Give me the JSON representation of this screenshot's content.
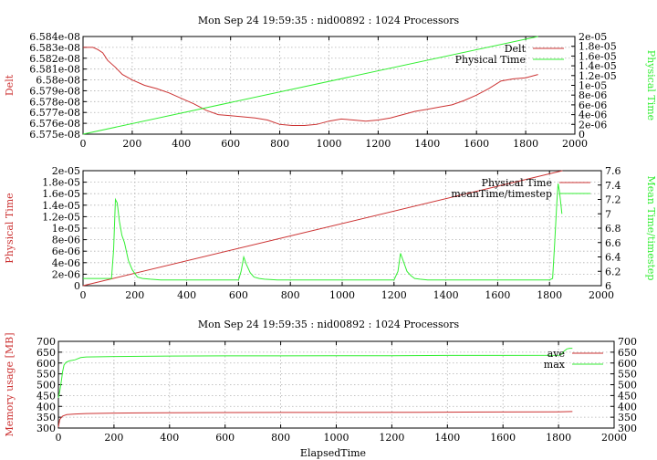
{
  "colors": {
    "red": "#cc3333",
    "green": "#33ee33"
  },
  "chart_data": [
    {
      "type": "line",
      "title": "Mon Sep 24 19:59:35 : nid00892 : 1024 Processors",
      "ylabel": "Delt",
      "y2label": "Physical Time",
      "xlim": [
        0,
        2000
      ],
      "ylim": [
        6.575e-08,
        6.584e-08
      ],
      "y2lim": [
        0,
        2e-05
      ],
      "xticks": [
        "0",
        "200",
        "400",
        "600",
        "800",
        "1000",
        "1200",
        "1400",
        "1600",
        "1800",
        "2000"
      ],
      "yticks": [
        "6.575e-08",
        "6.576e-08",
        "6.577e-08",
        "6.578e-08",
        "6.579e-08",
        "6.58e-08",
        "6.581e-08",
        "6.582e-08",
        "6.583e-08",
        "6.584e-08"
      ],
      "y2ticks": [
        "0",
        "2e-06",
        "4e-06",
        "6e-06",
        "8e-06",
        "1e-05",
        "1.2e-05",
        "1.4e-05",
        "1.6e-05",
        "1.8e-05",
        "2e-05"
      ],
      "grid": true,
      "legend": "top-right",
      "series": [
        {
          "name": "Delt",
          "axis": "y",
          "color": "red",
          "x": [
            0,
            40,
            60,
            80,
            100,
            130,
            160,
            200,
            250,
            300,
            350,
            400,
            450,
            500,
            550,
            600,
            650,
            700,
            750,
            800,
            850,
            900,
            950,
            1000,
            1050,
            1100,
            1150,
            1200,
            1250,
            1300,
            1350,
            1400,
            1450,
            1500,
            1550,
            1600,
            1650,
            1700,
            1750,
            1800,
            1850
          ],
          "y": [
            6.583e-08,
            6.583e-08,
            6.5828e-08,
            6.5825e-08,
            6.5818e-08,
            6.5812e-08,
            6.5805e-08,
            6.58e-08,
            6.5795e-08,
            6.5792e-08,
            6.5788e-08,
            6.5783e-08,
            6.5778e-08,
            6.5772e-08,
            6.5768e-08,
            6.5767e-08,
            6.5766e-08,
            6.5765e-08,
            6.5763e-08,
            6.5759e-08,
            6.5758e-08,
            6.5758e-08,
            6.5759e-08,
            6.5762e-08,
            6.5764e-08,
            6.5763e-08,
            6.5762e-08,
            6.5763e-08,
            6.5765e-08,
            6.5768e-08,
            6.5771e-08,
            6.5773e-08,
            6.5775e-08,
            6.5777e-08,
            6.5781e-08,
            6.5786e-08,
            6.5792e-08,
            6.5799e-08,
            6.5801e-08,
            6.5802e-08,
            6.5805e-08
          ]
        },
        {
          "name": "Physical Time",
          "axis": "y2",
          "color": "green",
          "x": [
            0,
            1850
          ],
          "y": [
            0,
            2e-05
          ]
        }
      ]
    },
    {
      "type": "line",
      "title": "",
      "ylabel": "Physical Time",
      "y2label": "Mean Time/timestep",
      "xlim": [
        0,
        2000
      ],
      "ylim": [
        0,
        2e-05
      ],
      "y2lim": [
        6,
        7.6
      ],
      "xticks": [
        "0",
        "200",
        "400",
        "600",
        "800",
        "1000",
        "1200",
        "1400",
        "1600",
        "1800",
        "2000"
      ],
      "yticks": [
        "0",
        "2e-06",
        "4e-06",
        "6e-06",
        "8e-06",
        "1e-05",
        "1.2e-05",
        "1.4e-05",
        "1.6e-05",
        "1.8e-05",
        "2e-05"
      ],
      "y2ticks": [
        "6",
        "6.2",
        "6.4",
        "6.6",
        "6.8",
        "7",
        "7.2",
        "7.4",
        "7.6"
      ],
      "grid": true,
      "legend": "top-right",
      "series": [
        {
          "name": "Physical Time",
          "axis": "y",
          "color": "red",
          "x": [
            0,
            1850
          ],
          "y": [
            0,
            2e-05
          ]
        },
        {
          "name": "meanTime/timestep",
          "axis": "y2",
          "color": "green",
          "x": [
            0,
            110,
            118,
            125,
            132,
            140,
            150,
            160,
            175,
            190,
            210,
            230,
            260,
            300,
            400,
            500,
            600,
            610,
            620,
            630,
            645,
            660,
            680,
            700,
            750,
            800,
            900,
            1000,
            1100,
            1200,
            1215,
            1225,
            1232,
            1240,
            1250,
            1265,
            1280,
            1300,
            1330,
            1400,
            1500,
            1600,
            1700,
            1800,
            1812,
            1820,
            1828,
            1833,
            1838,
            1842,
            1848
          ],
          "y": [
            6.1,
            6.1,
            6.5,
            7.2,
            7.15,
            6.9,
            6.7,
            6.6,
            6.35,
            6.22,
            6.12,
            6.1,
            6.09,
            6.08,
            6.08,
            6.08,
            6.08,
            6.2,
            6.4,
            6.3,
            6.18,
            6.12,
            6.1,
            6.09,
            6.08,
            6.08,
            6.08,
            6.08,
            6.08,
            6.08,
            6.2,
            6.45,
            6.38,
            6.3,
            6.2,
            6.14,
            6.1,
            6.09,
            6.08,
            6.08,
            6.08,
            6.08,
            6.08,
            6.08,
            6.1,
            6.6,
            7.15,
            7.42,
            7.32,
            7.2,
            7.0
          ]
        }
      ]
    },
    {
      "type": "line",
      "title": "Mon Sep 24 19:59:35 : nid00892 : 1024 Processors",
      "xlabel": "ElapsedTime",
      "ylabel": "Memory usage [MB]",
      "xlim": [
        0,
        2000
      ],
      "ylim": [
        300,
        700
      ],
      "y2lim": [
        300,
        700
      ],
      "xticks": [
        "0",
        "200",
        "400",
        "600",
        "800",
        "1000",
        "1200",
        "1400",
        "1600",
        "1800",
        "2000"
      ],
      "yticks": [
        "300",
        "350",
        "400",
        "450",
        "500",
        "550",
        "600",
        "650",
        "700"
      ],
      "y2ticks": [
        "300",
        "350",
        "400",
        "450",
        "500",
        "550",
        "600",
        "650",
        "700"
      ],
      "grid": true,
      "legend": "top-right",
      "series": [
        {
          "name": "ave",
          "axis": "y",
          "color": "red",
          "x": [
            0,
            5,
            15,
            30,
            60,
            100,
            200,
            300,
            500,
            800,
            1000,
            1300,
            1600,
            1800,
            1850
          ],
          "y": [
            305,
            340,
            355,
            362,
            365,
            367,
            369,
            370,
            371,
            372,
            372,
            373,
            374,
            375,
            376
          ]
        },
        {
          "name": "max",
          "axis": "y",
          "color": "green",
          "x": [
            0,
            5,
            10,
            15,
            20,
            25,
            30,
            40,
            60,
            80,
            100,
            200,
            400,
            600,
            800,
            1000,
            1200,
            1400,
            1600,
            1800,
            1810,
            1820,
            1830,
            1840,
            1850
          ],
          "y": [
            440,
            470,
            510,
            560,
            590,
            600,
            605,
            610,
            615,
            625,
            628,
            630,
            632,
            633,
            633,
            634,
            634,
            635,
            635,
            636,
            640,
            655,
            665,
            668,
            668
          ]
        }
      ]
    }
  ]
}
